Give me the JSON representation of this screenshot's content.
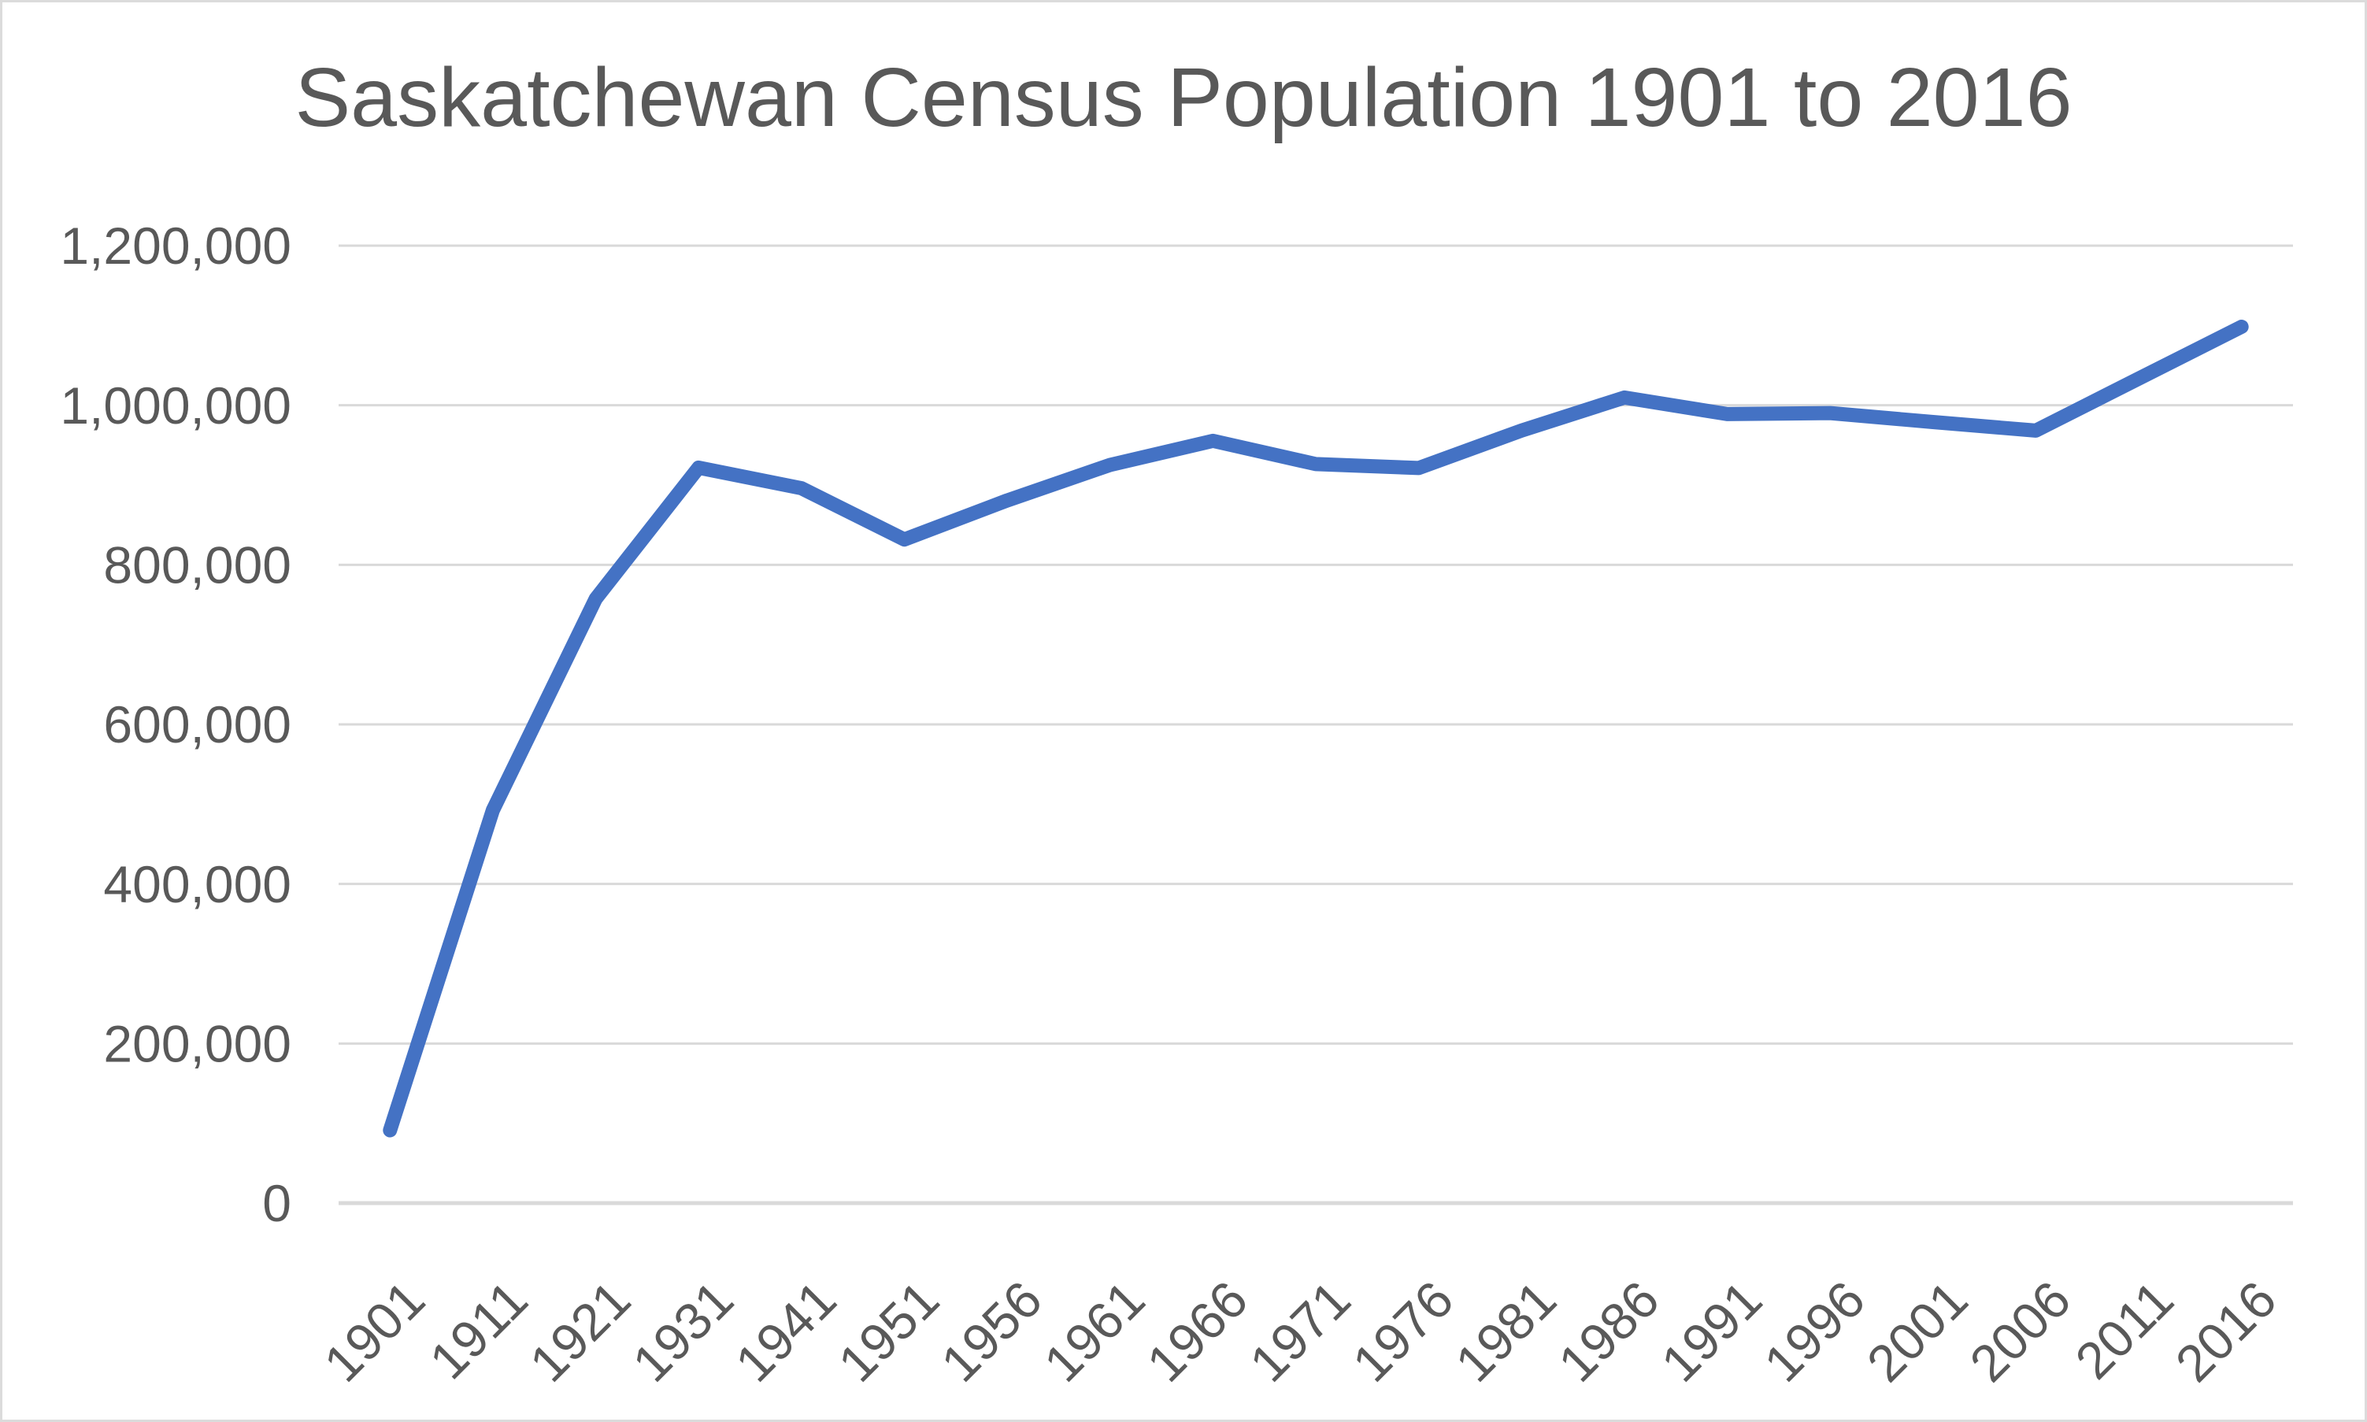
{
  "chart_data": {
    "type": "line",
    "title": "Saskatchewan Census Population 1901 to 2016",
    "categories": [
      "1901",
      "1911",
      "1921",
      "1931",
      "1941",
      "1951",
      "1956",
      "1961",
      "1966",
      "1971",
      "1976",
      "1981",
      "1986",
      "1991",
      "1996",
      "2001",
      "2006",
      "2011",
      "2016"
    ],
    "series": [
      {
        "name": "Census Population",
        "values": [
          91279,
          492432,
          757510,
          921785,
          895992,
          831728,
          880665,
          925181,
          955344,
          926242,
          921323,
          968313,
          1009613,
          988928,
          990237,
          978933,
          968157,
          1033381,
          1098352
        ]
      }
    ],
    "xlabel": "",
    "ylabel": "",
    "ylim": [
      0,
      1200000
    ],
    "y_tick_step": 200000,
    "y_tick_labels": [
      "0",
      "200,000",
      "400,000",
      "600,000",
      "800,000",
      "1,000,000",
      "1,200,000"
    ],
    "grid": true,
    "legend": "none"
  },
  "colors": {
    "line": "#4472C4",
    "grid": "#D9D9D9",
    "axis": "#D9D9D9",
    "text": "#595959",
    "background": "#FFFFFF",
    "frame_border": "#DBDBDB"
  }
}
